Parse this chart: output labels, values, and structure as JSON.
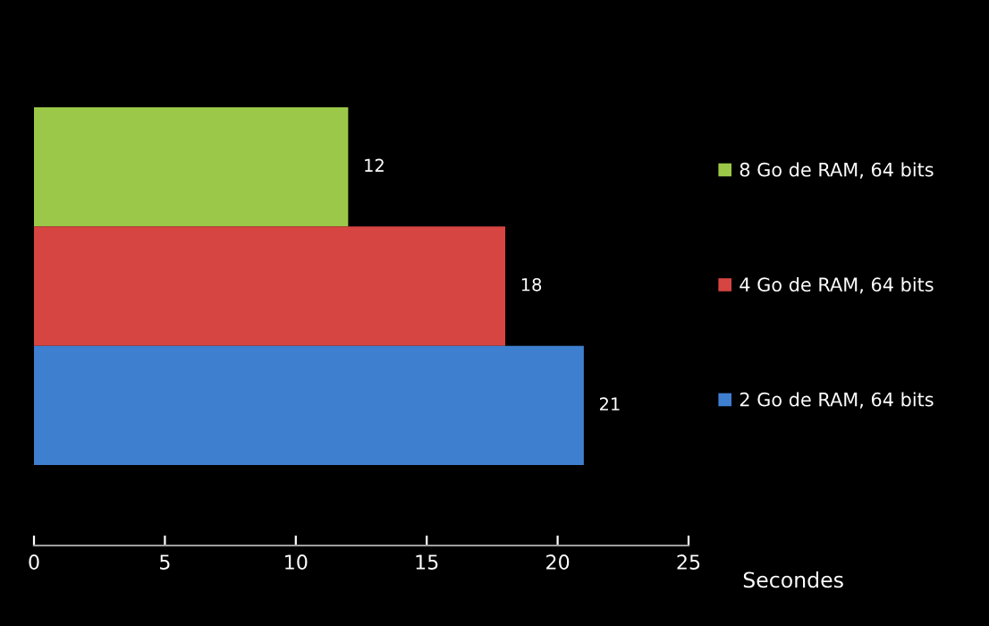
{
  "chart_data": {
    "type": "bar",
    "orientation": "horizontal",
    "categories": [
      null
    ],
    "series": [
      {
        "name": "8 Go de RAM, 64 bits",
        "color": "#9bc848",
        "values": [
          12
        ]
      },
      {
        "name": "4 Go de RAM, 64 bits",
        "color": "#d64541",
        "values": [
          18
        ]
      },
      {
        "name": "2 Go de RAM, 64 bits",
        "color": "#3f7fd0",
        "values": [
          21
        ]
      }
    ],
    "xlabel": "Secondes",
    "xlim": [
      0,
      25
    ],
    "xticks": [
      0,
      5,
      10,
      15,
      20,
      25
    ],
    "data_labels": true,
    "legend": "right",
    "grid": false
  }
}
